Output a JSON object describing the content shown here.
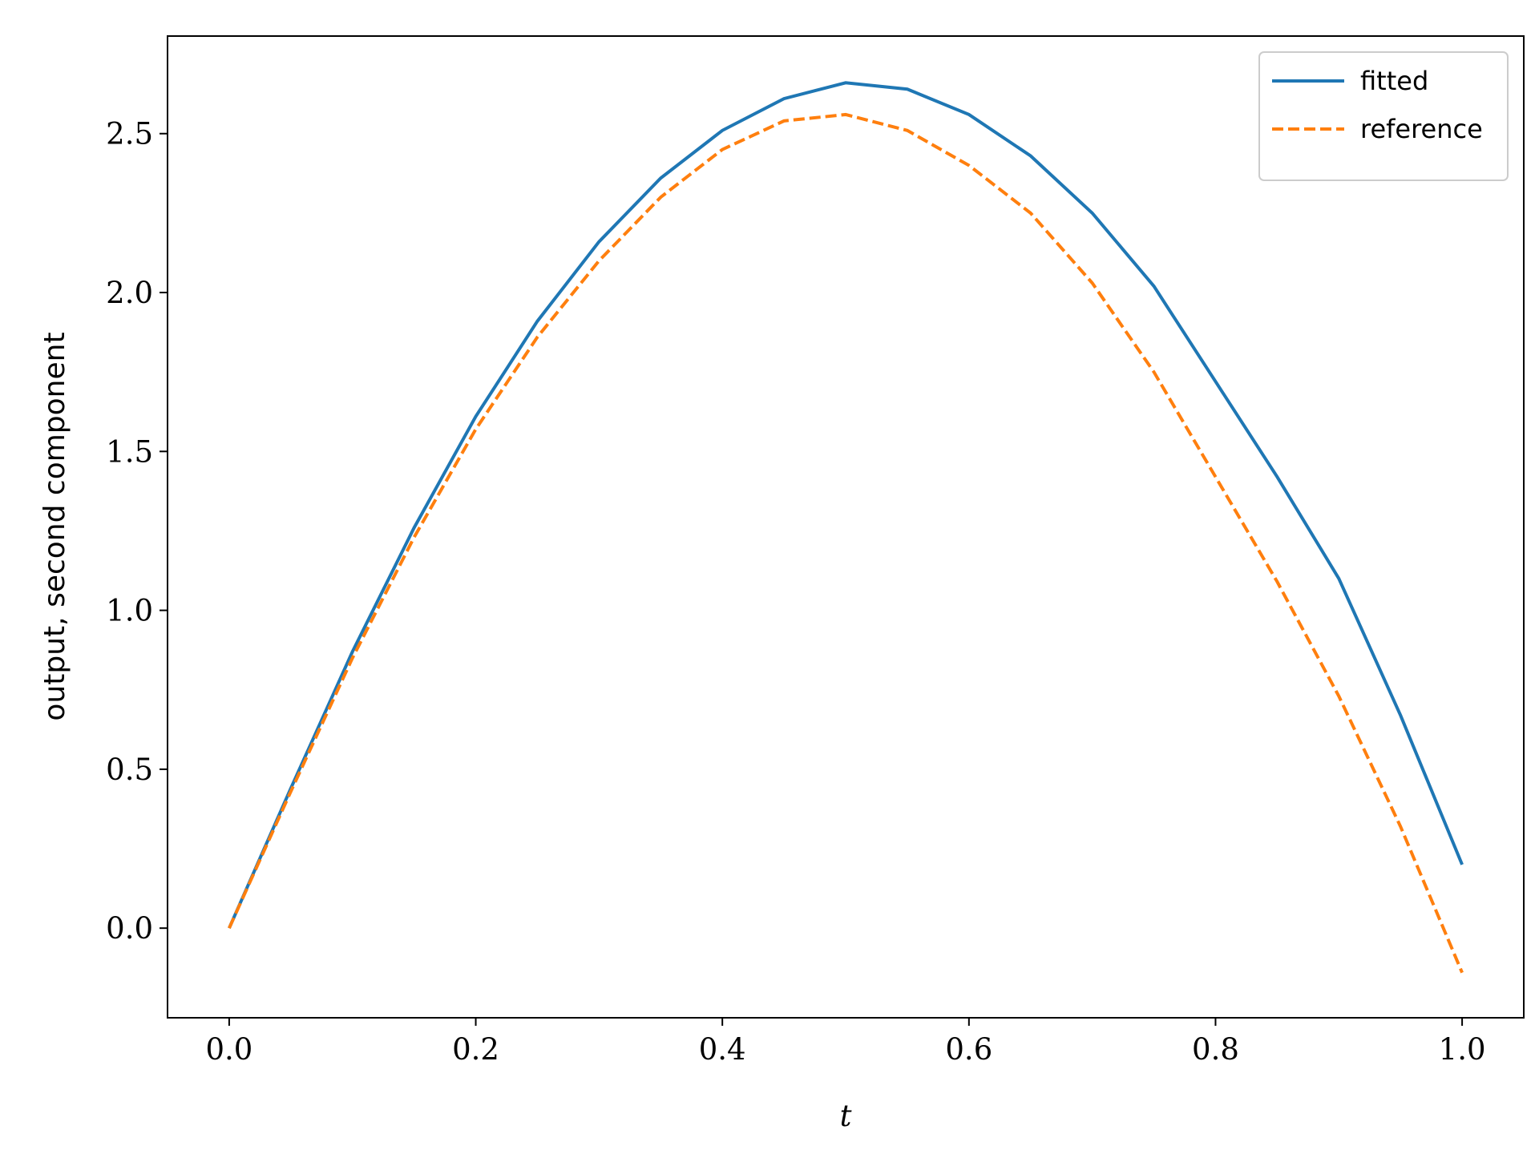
{
  "chart_data": {
    "type": "line",
    "x_label": "t",
    "y_label": "output, second component",
    "x": [
      0,
      0.05,
      0.1,
      0.15,
      0.2,
      0.25,
      0.3,
      0.35,
      0.4,
      0.45,
      0.5,
      0.55,
      0.6,
      0.65,
      0.7,
      0.75,
      0.8,
      0.85,
      0.9,
      0.95,
      1
    ],
    "series": [
      {
        "name": "fitted",
        "color": "#1f77b4",
        "linestyle": "solid",
        "values": [
          0,
          0.44,
          0.87,
          1.26,
          1.61,
          1.91,
          2.16,
          2.36,
          2.51,
          2.61,
          2.66,
          2.64,
          2.56,
          2.43,
          2.25,
          2.02,
          1.72,
          1.42,
          1.1,
          0.67,
          0.2
        ]
      },
      {
        "name": "reference",
        "color": "#ff7f0e",
        "linestyle": "dashed",
        "values": [
          0,
          0.43,
          0.85,
          1.23,
          1.57,
          1.86,
          2.1,
          2.3,
          2.45,
          2.54,
          2.56,
          2.51,
          2.4,
          2.25,
          2.03,
          1.75,
          1.42,
          1.09,
          0.73,
          0.32,
          -0.14
        ]
      }
    ],
    "xlim": [
      -0.05,
      1.05
    ],
    "ylim": [
      -0.282,
      2.807
    ],
    "xticks": [
      {
        "value": 0,
        "label": "0.0"
      },
      0.2,
      0.4,
      0.6,
      0.8,
      {
        "value": 1,
        "label": "1.0"
      }
    ],
    "yticks": [
      {
        "value": 0,
        "label": "0.0"
      },
      0.5,
      {
        "value": 1,
        "label": "1.0"
      },
      1.5,
      {
        "value": 2,
        "label": "2.0"
      },
      2.5
    ],
    "legend": "upper right",
    "grid": false
  }
}
